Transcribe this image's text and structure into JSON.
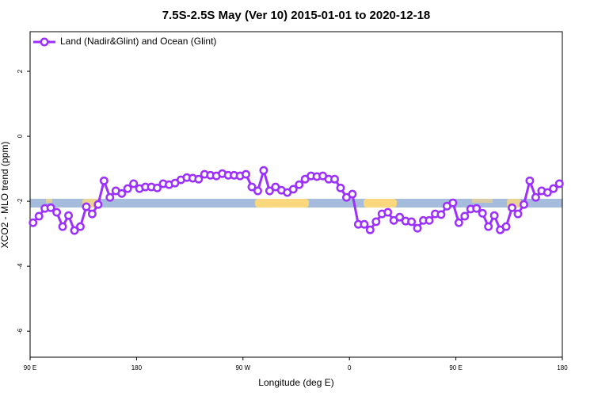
{
  "chart_data": {
    "type": "line",
    "title": "7.5S-2.5S May (Ver 10)   2015-01-01 to 2020-12-18",
    "xlabel": "Longitude (deg E)",
    "ylabel": "XCO2 - MLO trend (ppm)",
    "xlim": [
      90,
      540
    ],
    "xticks": [
      {
        "value": 90,
        "label": "90 E"
      },
      {
        "value": 180,
        "label": "180"
      },
      {
        "value": 270,
        "label": "90 W"
      },
      {
        "value": 360,
        "label": "0"
      },
      {
        "value": 450,
        "label": "90 E"
      },
      {
        "value": 540,
        "label": "180"
      }
    ],
    "ylim": [
      -6.8,
      3.22
    ],
    "yticks": [
      -6,
      -4,
      -2,
      0,
      2
    ],
    "legend": "upper left",
    "x": [
      92.5,
      97.5,
      102.5,
      107.5,
      112.5,
      117.5,
      122.5,
      127.5,
      132.5,
      137.5,
      142.5,
      147.5,
      152.5,
      157.5,
      162.5,
      167.5,
      172.5,
      177.5,
      182.5,
      187.5,
      192.5,
      197.5,
      202.5,
      207.5,
      212.5,
      217.5,
      222.5,
      227.5,
      232.5,
      237.5,
      242.5,
      247.5,
      252.5,
      257.5,
      262.5,
      267.5,
      272.5,
      277.5,
      282.5,
      287.5,
      292.5,
      297.5,
      302.5,
      307.5,
      312.5,
      317.5,
      322.5,
      327.5,
      332.5,
      337.5,
      342.5,
      347.5,
      352.5,
      357.5,
      362.5,
      367.5,
      372.5,
      377.5,
      382.5,
      387.5,
      392.5,
      397.5,
      402.5,
      407.5,
      412.5,
      417.5,
      422.5,
      427.5,
      432.5,
      437.5,
      442.5,
      447.5,
      452.5,
      457.5,
      462.5,
      467.5,
      472.5,
      477.5,
      482.5,
      487.5,
      492.5,
      497.5,
      502.5,
      507.5,
      512.5,
      517.5,
      522.5,
      527.5,
      532.5,
      537.5
    ],
    "series": [
      {
        "name": "Land (Nadir&Glint) and Ocean (Glint)",
        "color": "#9b30ff",
        "values": [
          -2.66,
          -2.46,
          -2.22,
          -2.2,
          -2.34,
          -2.78,
          -2.44,
          -2.9,
          -2.78,
          -2.17,
          -2.39,
          -2.1,
          -1.37,
          -1.88,
          -1.68,
          -1.76,
          -1.61,
          -1.46,
          -1.61,
          -1.56,
          -1.56,
          -1.59,
          -1.46,
          -1.49,
          -1.44,
          -1.34,
          -1.27,
          -1.29,
          -1.32,
          -1.17,
          -1.2,
          -1.22,
          -1.15,
          -1.2,
          -1.2,
          -1.22,
          -1.17,
          -1.56,
          -1.68,
          -1.05,
          -1.68,
          -1.56,
          -1.66,
          -1.73,
          -1.63,
          -1.49,
          -1.32,
          -1.22,
          -1.24,
          -1.22,
          -1.32,
          -1.32,
          -1.59,
          -1.88,
          -1.78,
          -2.71,
          -2.71,
          -2.88,
          -2.63,
          -2.39,
          -2.34,
          -2.59,
          -2.49,
          -2.61,
          -2.63,
          -2.83,
          -2.59,
          -2.59,
          -2.39,
          -2.41,
          -2.15,
          -2.05,
          -2.66,
          -2.46,
          -2.24,
          -2.22,
          -2.37,
          -2.78,
          -2.44,
          -2.88,
          -2.78,
          -2.2,
          -2.39,
          -2.1,
          -1.37,
          -1.88,
          -1.68,
          -1.73,
          -1.61,
          -1.46
        ]
      }
    ]
  }
}
